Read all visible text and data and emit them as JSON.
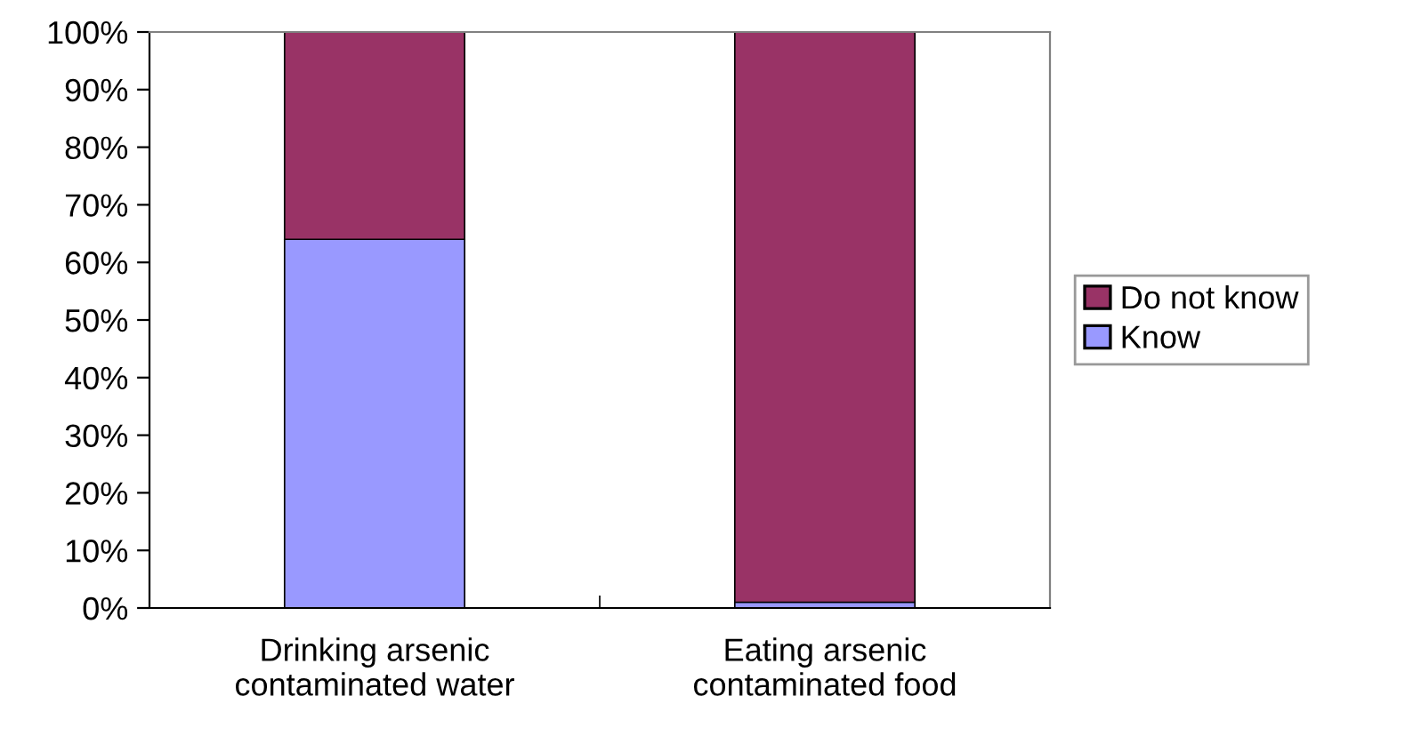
{
  "chart_data": {
    "type": "bar",
    "stacked": true,
    "categories": [
      "Drinking arsenic\ncontaminated water",
      "Eating arsenic\ncontaminated food"
    ],
    "series": [
      {
        "name": "Know",
        "color": "#9999ff",
        "values": [
          64,
          1
        ]
      },
      {
        "name": "Do not know",
        "color": "#993366",
        "values": [
          36,
          99
        ]
      }
    ],
    "ylim": [
      0,
      100
    ],
    "yticks": [
      {
        "value": 0,
        "label": "0%"
      },
      {
        "value": 10,
        "label": "10%"
      },
      {
        "value": 20,
        "label": "20%"
      },
      {
        "value": 30,
        "label": "30%"
      },
      {
        "value": 40,
        "label": "40%"
      },
      {
        "value": 50,
        "label": "50%"
      },
      {
        "value": 60,
        "label": "60%"
      },
      {
        "value": 70,
        "label": "70%"
      },
      {
        "value": 80,
        "label": "80%"
      },
      {
        "value": 90,
        "label": "90%"
      },
      {
        "value": 100,
        "label": "100%"
      }
    ],
    "grid": false,
    "legend": "right"
  }
}
